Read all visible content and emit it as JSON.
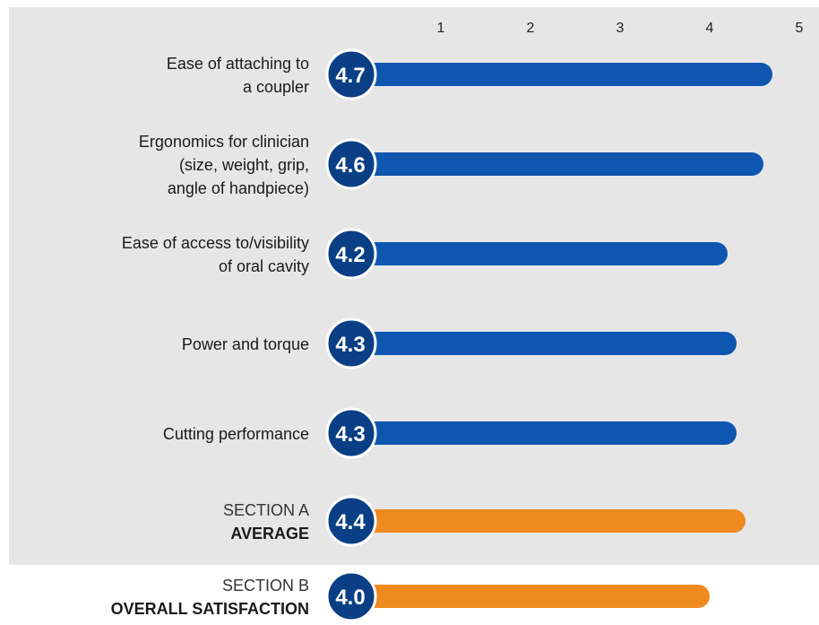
{
  "chart_data": {
    "type": "bar",
    "orientation": "horizontal",
    "xlim": [
      0,
      5
    ],
    "ticks": [
      "1",
      "2",
      "3",
      "4",
      "5"
    ],
    "grid": false,
    "legend": "none",
    "colors": {
      "panel": "#e6e6e7",
      "item_bar": "#0e56b0",
      "item_bar_dark": "#0a3f85",
      "summary_bar": "#ef8a21",
      "summary_badge": "#0a3f85",
      "text": "#1a1a1a"
    },
    "items": [
      {
        "label_lines": [
          "Ease of attaching to",
          "a coupler"
        ],
        "value": 4.7,
        "display": "4.7",
        "kind": "item"
      },
      {
        "label_lines": [
          "Ergonomics for clinician",
          "(size, weight, grip,",
          "angle of handpiece)"
        ],
        "value": 4.6,
        "display": "4.6",
        "kind": "item"
      },
      {
        "label_lines": [
          "Ease of access to/visibility",
          "of oral cavity"
        ],
        "value": 4.2,
        "display": "4.2",
        "kind": "item"
      },
      {
        "label_lines": [
          "Power and torque"
        ],
        "value": 4.3,
        "display": "4.3",
        "kind": "item"
      },
      {
        "label_lines": [
          "Cutting performance"
        ],
        "value": 4.3,
        "display": "4.3",
        "kind": "item"
      },
      {
        "label_lines": [
          "SECTION A",
          "AVERAGE"
        ],
        "value": 4.4,
        "display": "4.4",
        "kind": "summary"
      },
      {
        "label_lines": [
          "SECTION B",
          "OVERALL SATISFACTION"
        ],
        "value": 4.0,
        "display": "4.0",
        "kind": "summary"
      }
    ]
  }
}
